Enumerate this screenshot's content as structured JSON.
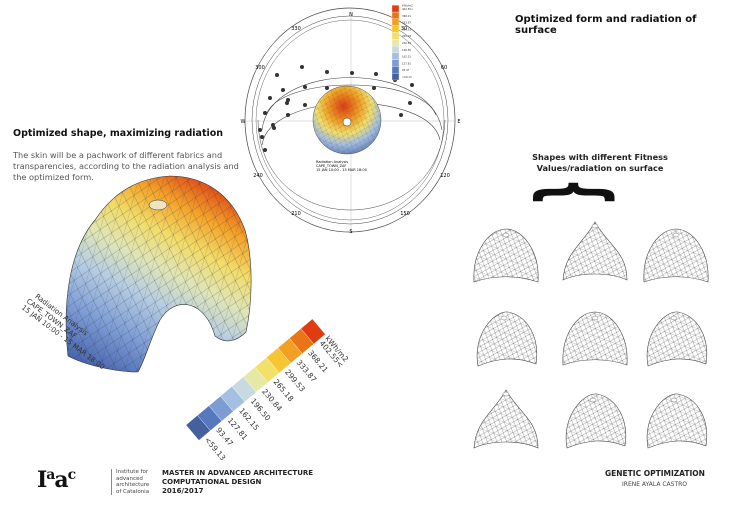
{
  "left": {
    "heading": "Optimized shape, maximizing radiation",
    "description": "The skin will be a pachwork of different fabrics and transparencies, according to the radiation analysis and the optimized form.",
    "caption": [
      "Radiation Analysis",
      "CAPE_TOWN_ZAF",
      "15 JAN 10:00 - 15 MAR 18:00"
    ]
  },
  "legend": {
    "unit": "kWh/m2",
    "labels": [
      "<59.13",
      "93.47",
      "127.81",
      "162.15",
      "196.50",
      "230.84",
      "265.18",
      "299.53",
      "333.87",
      "368.21",
      "402.55<"
    ],
    "colors": [
      "#44609f",
      "#5878bd",
      "#7d9cd6",
      "#a4bfe3",
      "#c8d9e0",
      "#e6e9a6",
      "#f3e06a",
      "#f6c531",
      "#f2a023",
      "#ea7516",
      "#e03c12"
    ]
  },
  "sun_path": {
    "directions": {
      "n": "N",
      "s": "S",
      "e": "E",
      "w": "W"
    },
    "degrees": {
      "d330": "330",
      "d30": "30",
      "d300": "300",
      "d60": "60",
      "d240": "240",
      "d120": "120",
      "d210": "210",
      "d150": "150"
    },
    "caption": [
      "Radiation Analysis",
      "CAPE_TOWN_ZAF",
      "15 JAN 10:00 - 15 MAR 18:00"
    ]
  },
  "right": {
    "title": "Optimized form and radiation of surface",
    "shapes_heading_1": "Shapes with different Fitness",
    "shapes_heading_2": "Values/radiation on surface",
    "brace": "{"
  },
  "footer": {
    "logo": "Iaac",
    "institute": [
      "Institute for",
      "advanced",
      "architecture",
      "of Catalonia"
    ],
    "program": [
      "MASTER IN ADVANCED ARCHITECTURE",
      "COMPUTATIONAL DESIGN",
      "2016/2017"
    ],
    "project": "GENETIC OPTIMIZATION",
    "author": "IRENE AYALA CASTRO"
  }
}
